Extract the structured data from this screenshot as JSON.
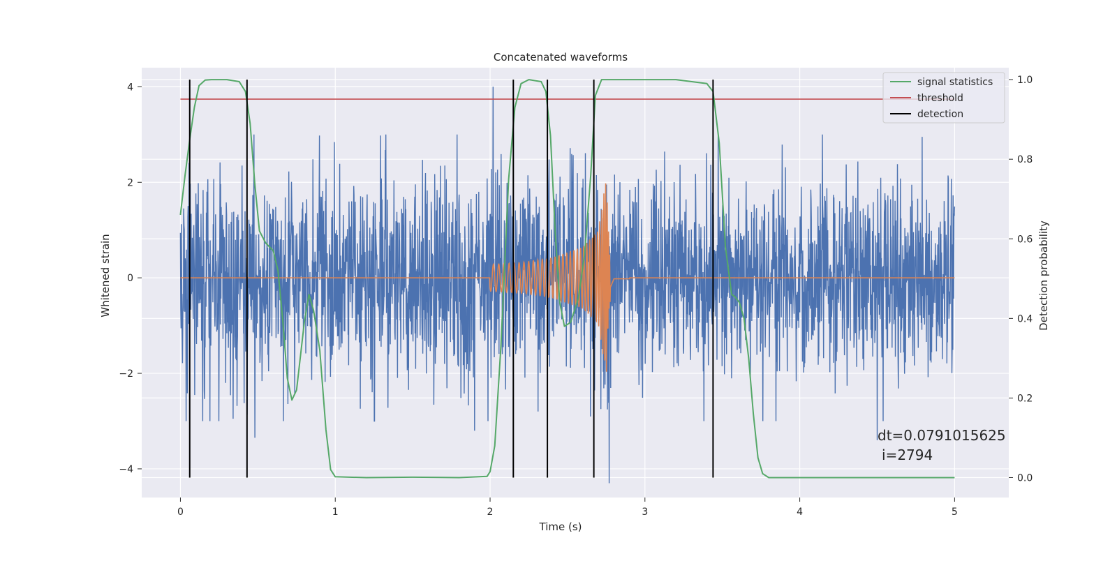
{
  "chart_data": {
    "type": "line",
    "title": "Concatenated waveforms",
    "xlabel": "Time (s)",
    "ylabel": "Whitened strain",
    "ylabel_right": "Detection probability",
    "xlim": [
      -0.25,
      5.35
    ],
    "ylim": [
      -4.6,
      4.4
    ],
    "ylim_right": [
      -0.05,
      1.03
    ],
    "x_ticks": [
      0,
      1,
      2,
      3,
      4,
      5
    ],
    "y_ticks": [
      -4,
      -2,
      0,
      2,
      4
    ],
    "y_ticks_right": [
      0.0,
      0.2,
      0.4,
      0.6,
      0.8,
      1.0
    ],
    "x_tick_labels": [
      "0",
      "1",
      "2",
      "3",
      "4",
      "5"
    ],
    "y_tick_labels": [
      "−4",
      "−2",
      "0",
      "2",
      "4"
    ],
    "y_tick_labels_right": [
      "0.0",
      "0.2",
      "0.4",
      "0.6",
      "0.8",
      "1.0"
    ],
    "grid": true,
    "legend_position": "top-right",
    "series": [
      {
        "name": "strain",
        "axis": "left",
        "color": "#4c72b0",
        "kind": "noise",
        "x_range": [
          0,
          5
        ],
        "typical_amplitude": 1.3,
        "extreme_peaks": [
          {
            "x": 2.02,
            "y": 4.0
          },
          {
            "x": 2.77,
            "y": -4.3
          },
          {
            "x": 0.48,
            "y": -3.35
          },
          {
            "x": 4.5,
            "y": -3.4
          },
          {
            "x": 1.9,
            "y": -3.2
          },
          {
            "x": 0.34,
            "y": -2.95
          }
        ]
      },
      {
        "name": "template",
        "axis": "left",
        "color": "#dd8452",
        "kind": "chirp",
        "x": [
          0,
          2.0,
          2.2,
          2.4,
          2.6,
          2.7,
          2.75,
          2.77,
          2.8,
          5
        ],
        "envelope": [
          0,
          0.28,
          0.32,
          0.42,
          0.65,
          1.0,
          2.1,
          0.6,
          0.05,
          0
        ]
      },
      {
        "name": "signal statistics",
        "axis": "right",
        "color": "#55a868",
        "x": [
          0,
          0.03,
          0.06,
          0.09,
          0.12,
          0.16,
          0.2,
          0.3,
          0.38,
          0.42,
          0.45,
          0.48,
          0.51,
          0.55,
          0.6,
          0.63,
          0.66,
          0.69,
          0.72,
          0.75,
          0.8,
          0.83,
          0.86,
          0.9,
          0.94,
          0.97,
          1.0,
          1.2,
          1.5,
          1.8,
          1.98,
          2.0,
          2.03,
          2.07,
          2.12,
          2.16,
          2.2,
          2.25,
          2.33,
          2.36,
          2.39,
          2.42,
          2.45,
          2.48,
          2.52,
          2.57,
          2.61,
          2.65,
          2.68,
          2.72,
          2.8,
          3.0,
          3.2,
          3.4,
          3.44,
          3.48,
          3.52,
          3.56,
          3.58,
          3.61,
          3.64,
          3.67,
          3.7,
          3.73,
          3.76,
          3.8,
          4.0,
          4.5,
          5.0
        ],
        "y": [
          0.66,
          0.76,
          0.85,
          0.93,
          0.985,
          0.999,
          1.0,
          1.0,
          0.995,
          0.97,
          0.89,
          0.74,
          0.62,
          0.59,
          0.57,
          0.52,
          0.4,
          0.25,
          0.195,
          0.22,
          0.39,
          0.46,
          0.42,
          0.32,
          0.12,
          0.02,
          0.002,
          0.0,
          0.001,
          0.0,
          0.003,
          0.015,
          0.08,
          0.33,
          0.75,
          0.93,
          0.99,
          1.0,
          0.995,
          0.97,
          0.86,
          0.62,
          0.44,
          0.38,
          0.39,
          0.45,
          0.56,
          0.76,
          0.96,
          1.0,
          1.0,
          1.0,
          1.0,
          0.99,
          0.97,
          0.84,
          0.58,
          0.46,
          0.455,
          0.44,
          0.4,
          0.3,
          0.16,
          0.05,
          0.01,
          0.0,
          0.0,
          0.0,
          0.0
        ]
      },
      {
        "name": "threshold",
        "axis": "right",
        "color": "#c44e52",
        "x": [
          0,
          5
        ],
        "y": [
          0.951,
          0.951
        ]
      },
      {
        "name": "detection",
        "axis": "right",
        "color": "#000000",
        "vertical_lines_x": [
          0.06,
          0.43,
          2.15,
          2.37,
          2.67,
          3.44
        ],
        "y_range": [
          0.0,
          1.0
        ]
      }
    ],
    "legend": [
      "signal statistics",
      "threshold",
      "detection"
    ],
    "annotations": [
      "dt=0.0791015625",
      "i=2794"
    ],
    "colors": {
      "background": "#eaeaf2",
      "grid": "#ffffff",
      "strain": "#4c72b0",
      "template": "#dd8452",
      "stat": "#55a868",
      "threshold": "#c44e52",
      "detection": "#000000"
    }
  }
}
